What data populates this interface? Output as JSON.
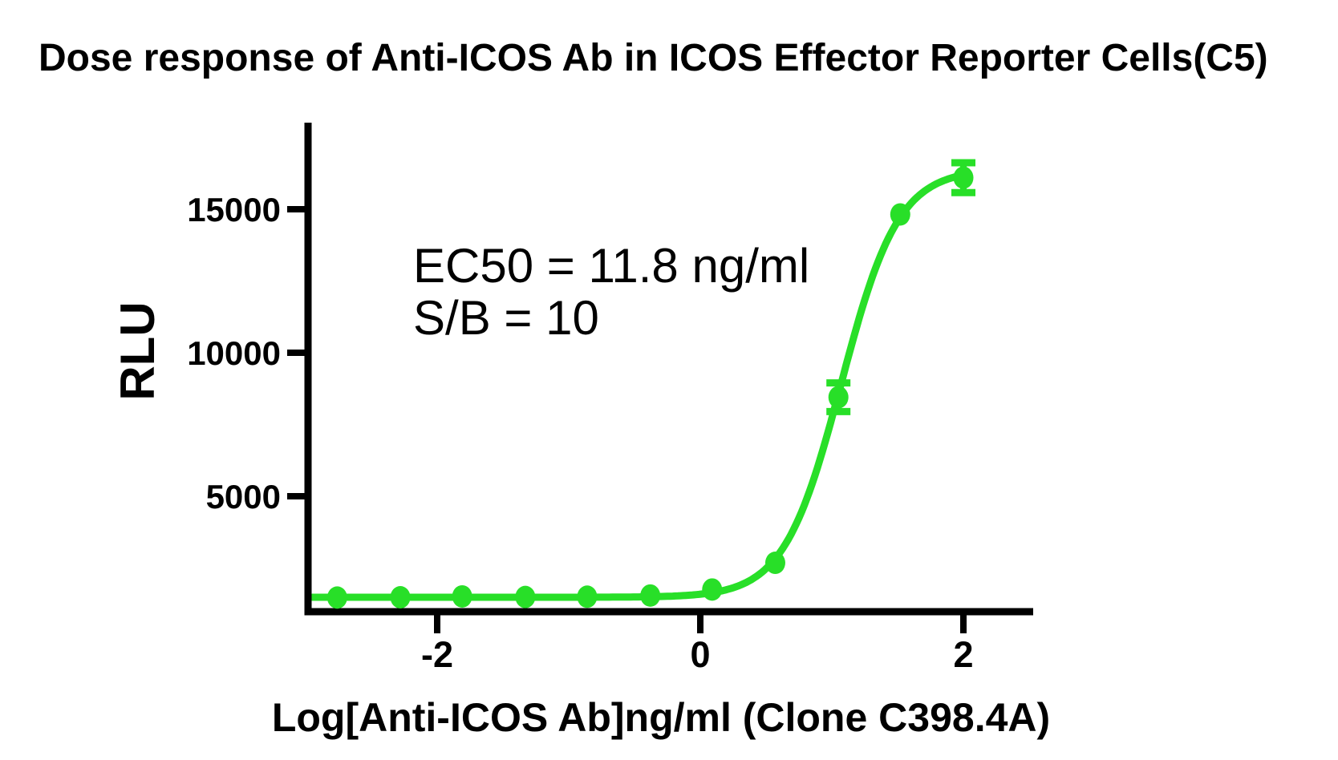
{
  "title": "Dose response of Anti-ICOS Ab in ICOS Effector Reporter Cells(C5)",
  "annotation": {
    "line1": "EC50 = 11.8 ng/ml",
    "line2": "S/B = 10"
  },
  "colors": {
    "curve": "#28DF28",
    "axis": "#000000",
    "text": "#000000",
    "background": "#ffffff"
  },
  "chart_data": {
    "type": "scatter",
    "title": "Dose response of Anti-ICOS Ab in ICOS Effector Reporter Cells(C5)",
    "xlabel": "Log[Anti-ICOS Ab]ng/ml (Clone C398.4A)",
    "ylabel": "RLU",
    "x_ticks": [
      -2,
      0,
      2
    ],
    "y_ticks": [
      5000,
      10000,
      15000
    ],
    "xlim": [
      -2.95,
      2.53
    ],
    "ylim": [
      1000,
      18000
    ],
    "grid": false,
    "legend": "none",
    "series": [
      {
        "name": "Anti-ICOS Ab (Clone C398.4A)",
        "x": [
          -2.76,
          -2.28,
          -1.81,
          -1.33,
          -0.86,
          -0.38,
          0.09,
          0.57,
          1.05,
          1.52,
          2.0
        ],
        "y": [
          1470,
          1480,
          1510,
          1490,
          1500,
          1540,
          1750,
          2680,
          8450,
          14820,
          16100
        ],
        "y_err": [
          null,
          null,
          null,
          null,
          null,
          null,
          null,
          null,
          500,
          null,
          520
        ]
      }
    ],
    "fit": {
      "model": "4PL-sigmoid",
      "bottom": 1480,
      "top": 16400,
      "logEC50": 1.0718,
      "hill": 2.0,
      "ec50_text": "EC50 = 11.8 ng/ml",
      "signal_to_background_text": "S/B = 10"
    }
  }
}
